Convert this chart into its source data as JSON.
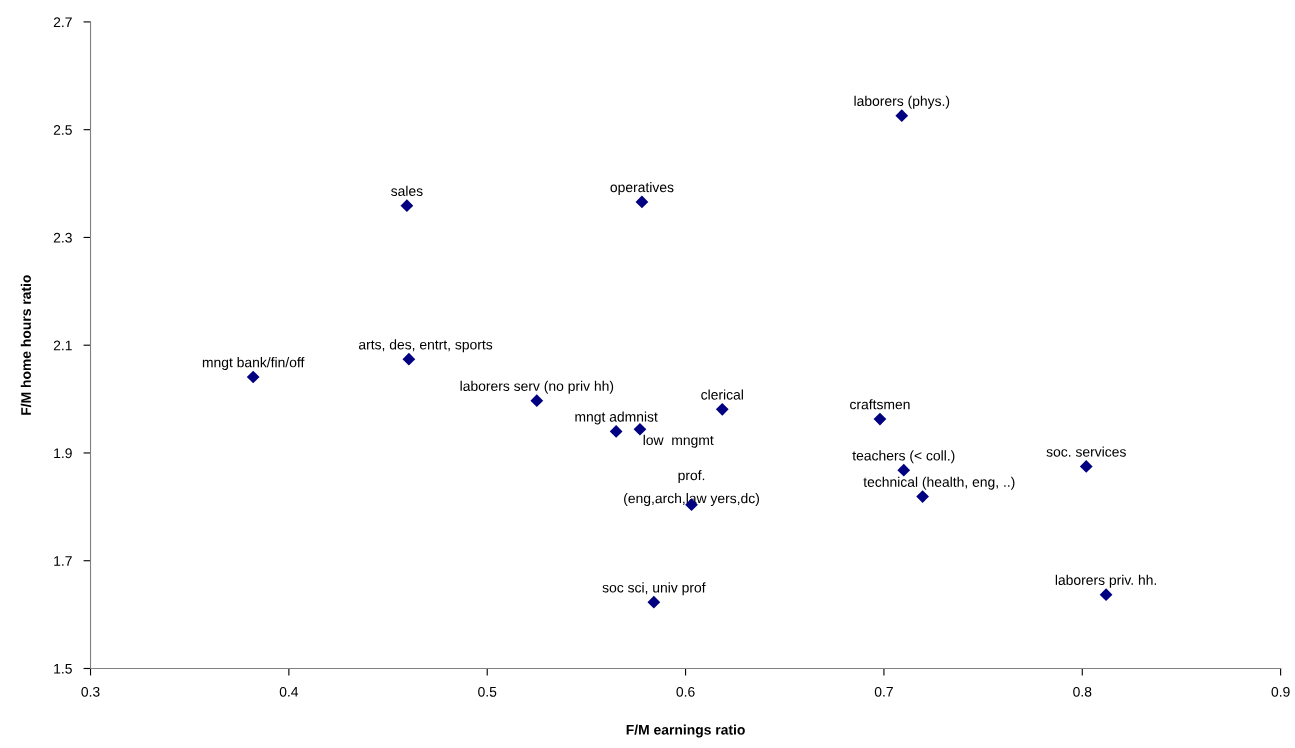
{
  "chart_data": {
    "type": "scatter",
    "xlabel": "F/M earnings ratio",
    "ylabel": "F/M home hours ratio",
    "xlim": [
      0.3,
      0.9
    ],
    "xticks": [
      0.3,
      0.4,
      0.5,
      0.6,
      0.7,
      0.8,
      0.9
    ],
    "ylim": [
      1.5,
      2.7
    ],
    "yticks": [
      1.5,
      1.7,
      1.9,
      2.1,
      2.3,
      2.5,
      2.7
    ],
    "grid": false,
    "legend": false,
    "marker": "diamond",
    "series": [
      {
        "color": "#000080",
        "x": [
          0.4595,
          0.578,
          0.4605,
          0.382,
          0.709,
          0.525,
          0.565,
          0.577,
          0.584,
          0.6185,
          0.603,
          0.698,
          0.71,
          0.7195,
          0.802,
          0.812
        ],
        "values": [
          2.359,
          2.366,
          2.074,
          2.041,
          2.526,
          1.997,
          1.94,
          1.944,
          1.623,
          1.981,
          1.804,
          1.963,
          1.868,
          1.819,
          1.875,
          1.637
        ]
      }
    ],
    "annotations": [
      {
        "text": "sales",
        "x": 0.4595,
        "y": 2.359
      },
      {
        "text": "operatives",
        "x": 0.578,
        "y": 2.366
      },
      {
        "text": "arts, des, entrt, sports",
        "x": 0.4605,
        "y": 2.074
      },
      {
        "text": "mngt bank/fin/off",
        "x": 0.382,
        "y": 2.041
      },
      {
        "text": "laborers (phys.)",
        "x": 0.709,
        "y": 2.526
      },
      {
        "text": "laborers serv (no priv hh)",
        "x": 0.525,
        "y": 1.997
      },
      {
        "text": "mngt admnist",
        "x": 0.565,
        "y": 1.94
      },
      {
        "text": "low  mngmt",
        "x": 0.577,
        "y": 1.944
      },
      {
        "text": "soc sci, univ prof",
        "x": 0.584,
        "y": 1.623
      },
      {
        "text": "clerical",
        "x": 0.6185,
        "y": 1.981
      },
      {
        "text": "prof.\n(eng,arch,law yers,dc)",
        "x": 0.603,
        "y": 1.804
      },
      {
        "text": "craftsmen",
        "x": 0.698,
        "y": 1.963
      },
      {
        "text": "teachers (< coll.)",
        "x": 0.71,
        "y": 1.868
      },
      {
        "text": "technical (health, eng, ..)",
        "x": 0.7195,
        "y": 1.819
      },
      {
        "text": "soc. services",
        "x": 0.802,
        "y": 1.875
      },
      {
        "text": "laborers priv. hh.",
        "x": 0.812,
        "y": 1.637
      }
    ]
  }
}
